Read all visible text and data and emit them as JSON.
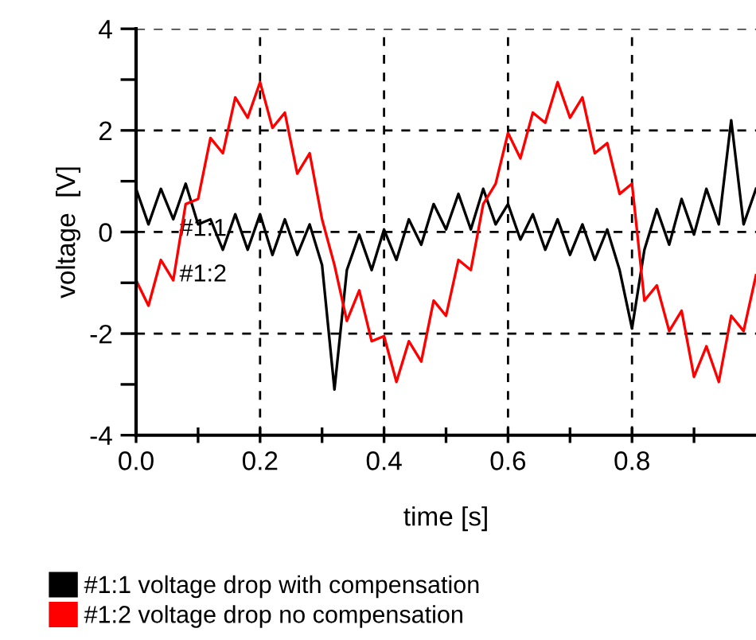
{
  "chart_data": {
    "type": "line",
    "xlabel": "time [s]",
    "ylabel": "voltage  [V]",
    "xlim": [
      0,
      1.0
    ],
    "ylim": [
      -4,
      4
    ],
    "xticks": [
      {
        "value": 0,
        "label": "0.0"
      },
      {
        "value": 0.1,
        "label": null
      },
      {
        "value": 0.2,
        "label": "0.2"
      },
      {
        "value": 0.3,
        "label": null
      },
      {
        "value": 0.4,
        "label": "0.4"
      },
      {
        "value": 0.5,
        "label": null
      },
      {
        "value": 0.6,
        "label": "0.6"
      },
      {
        "value": 0.7,
        "label": null
      },
      {
        "value": 0.8,
        "label": "0.8"
      },
      {
        "value": 0.9,
        "label": null
      }
    ],
    "yticks": [
      -4,
      {
        "value": -3,
        "label": null
      },
      -2,
      {
        "value": -1,
        "label": null
      },
      0,
      {
        "value": 1,
        "label": null
      },
      2,
      {
        "value": 3,
        "label": null
      },
      4
    ],
    "x": [
      0,
      0.02,
      0.04,
      0.06,
      0.08,
      0.1,
      0.12,
      0.14,
      0.16,
      0.18,
      0.2,
      0.22,
      0.24,
      0.26,
      0.28,
      0.3,
      0.32,
      0.34,
      0.36,
      0.38,
      0.4,
      0.42,
      0.44,
      0.46,
      0.48,
      0.5,
      0.52,
      0.54,
      0.56,
      0.58,
      0.6,
      0.62,
      0.64,
      0.66,
      0.68,
      0.7,
      0.72,
      0.74,
      0.76,
      0.78,
      0.8,
      0.82,
      0.84,
      0.86,
      0.88,
      0.9,
      0.92,
      0.94,
      0.96,
      0.98,
      1.0
    ],
    "series": [
      {
        "name": "#1:1 voltage drop with compensation",
        "color": "#000000",
        "values": [
          0.85,
          0.15,
          0.85,
          0.25,
          0.95,
          0.15,
          0.25,
          -0.35,
          0.35,
          -0.35,
          0.35,
          -0.45,
          0.25,
          -0.45,
          0.15,
          -0.65,
          -3.1,
          -0.75,
          -0.05,
          -0.75,
          0.05,
          -0.55,
          0.25,
          -0.25,
          0.55,
          0.05,
          0.75,
          0.05,
          0.85,
          0.15,
          0.55,
          -0.15,
          0.35,
          -0.35,
          0.25,
          -0.45,
          0.15,
          -0.55,
          0.05,
          -0.75,
          -1.9,
          -0.35,
          0.45,
          -0.25,
          0.65,
          -0.05,
          0.85,
          0.15,
          2.2,
          0.15,
          0.85
        ]
      },
      {
        "name": "#1:2 voltage drop no compensation",
        "color": "#ff0000",
        "values": [
          -0.95,
          -1.45,
          -0.55,
          -0.95,
          0.55,
          0.65,
          1.85,
          1.55,
          2.65,
          2.25,
          2.95,
          2.05,
          2.35,
          1.15,
          1.55,
          0.25,
          -0.65,
          -1.75,
          -1.15,
          -2.15,
          -2.05,
          -2.95,
          -2.15,
          -2.55,
          -1.35,
          -1.65,
          -0.55,
          -0.75,
          0.55,
          0.95,
          1.95,
          1.45,
          2.35,
          2.15,
          2.95,
          2.25,
          2.65,
          1.55,
          1.75,
          0.75,
          0.95,
          -1.35,
          -1.05,
          -1.95,
          -1.55,
          -2.85,
          -2.25,
          -2.95,
          -1.65,
          -1.95,
          -0.85
        ]
      }
    ],
    "annotations": [
      {
        "text": "#1:1",
        "x": 0.07,
        "y": 0.05
      },
      {
        "text": "#1:2",
        "x": 0.07,
        "y": -0.85
      }
    ],
    "grid": true,
    "legend": "bottom",
    "marker": "none",
    "line_style": "solid"
  }
}
